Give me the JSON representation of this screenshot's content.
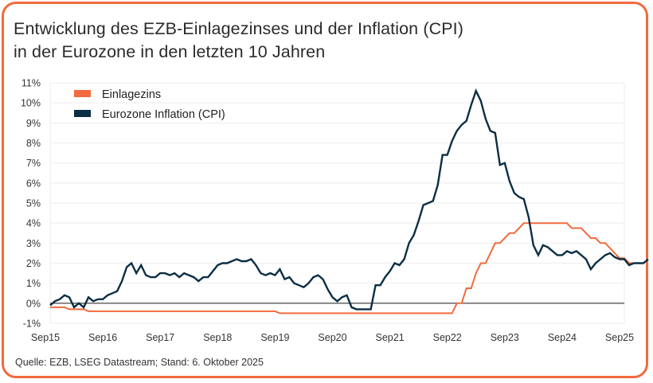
{
  "title_lines": [
    "Entwicklung des EZB-Einlagezinses und der Inflation (CPI)",
    "in der Eurozone in den letzten 10 Jahren"
  ],
  "source": "Quelle: EZB, LSEG Datastream; Stand: 6. Oktober 2025",
  "colors": {
    "deposit_rate": "#F26A3D",
    "inflation": "#0B2E43",
    "border": "#F26A3D",
    "zero_line": "#555555",
    "grid": "#EEEEEE"
  },
  "chart_data": {
    "type": "line",
    "title": "Entwicklung des EZB-Einlagezinses und der Inflation (CPI) in der Eurozone in den letzten 10 Jahren",
    "xlabel": "",
    "ylabel": "",
    "x_start": "2015-09",
    "x_end": "2025-09",
    "x_frequency": "monthly",
    "xticks": [
      "Sep15",
      "Sep16",
      "Sep17",
      "Sep18",
      "Sep19",
      "Sep20",
      "Sep21",
      "Sep22",
      "Sep23",
      "Sep24",
      "Sep25"
    ],
    "ylim": [
      -1,
      11
    ],
    "yticks": [
      -1,
      0,
      1,
      2,
      3,
      4,
      5,
      6,
      7,
      8,
      9,
      10,
      11
    ],
    "ytick_labels": [
      "-1%",
      "0%",
      "1%",
      "2%",
      "3%",
      "4%",
      "5%",
      "6%",
      "7%",
      "8%",
      "9%",
      "10%",
      "11%"
    ],
    "grid": true,
    "legend_position": "top-left",
    "series": [
      {
        "name": "Einlagezins",
        "color": "#F26A3D",
        "values": [
          -0.2,
          -0.2,
          -0.2,
          -0.2,
          -0.3,
          -0.3,
          -0.3,
          -0.3,
          -0.4,
          -0.4,
          -0.4,
          -0.4,
          -0.4,
          -0.4,
          -0.4,
          -0.4,
          -0.4,
          -0.4,
          -0.4,
          -0.4,
          -0.4,
          -0.4,
          -0.4,
          -0.4,
          -0.4,
          -0.4,
          -0.4,
          -0.4,
          -0.4,
          -0.4,
          -0.4,
          -0.4,
          -0.4,
          -0.4,
          -0.4,
          -0.4,
          -0.4,
          -0.4,
          -0.4,
          -0.4,
          -0.4,
          -0.4,
          -0.4,
          -0.4,
          -0.4,
          -0.4,
          -0.4,
          -0.4,
          -0.5,
          -0.5,
          -0.5,
          -0.5,
          -0.5,
          -0.5,
          -0.5,
          -0.5,
          -0.5,
          -0.5,
          -0.5,
          -0.5,
          -0.5,
          -0.5,
          -0.5,
          -0.5,
          -0.5,
          -0.5,
          -0.5,
          -0.5,
          -0.5,
          -0.5,
          -0.5,
          -0.5,
          -0.5,
          -0.5,
          -0.5,
          -0.5,
          -0.5,
          -0.5,
          -0.5,
          -0.5,
          -0.5,
          -0.5,
          -0.5,
          -0.5,
          -0.5,
          0.0,
          0.0,
          0.75,
          0.75,
          1.5,
          2.0,
          2.0,
          2.5,
          3.0,
          3.0,
          3.25,
          3.5,
          3.5,
          3.75,
          4.0,
          4.0,
          4.0,
          4.0,
          4.0,
          4.0,
          4.0,
          4.0,
          4.0,
          4.0,
          3.75,
          3.75,
          3.75,
          3.5,
          3.25,
          3.25,
          3.0,
          3.0,
          2.75,
          2.5,
          2.25,
          2.25,
          2.0,
          2.0,
          2.0,
          2.0
        ]
      },
      {
        "name": "Eurozone Inflation (CPI)",
        "color": "#0B2E43",
        "values": [
          -0.1,
          0.1,
          0.2,
          0.4,
          0.3,
          -0.2,
          0.0,
          -0.2,
          0.3,
          0.1,
          0.2,
          0.2,
          0.4,
          0.5,
          0.6,
          1.1,
          1.8,
          2.0,
          1.5,
          1.9,
          1.4,
          1.3,
          1.3,
          1.5,
          1.5,
          1.4,
          1.5,
          1.3,
          1.5,
          1.4,
          1.3,
          1.1,
          1.3,
          1.3,
          1.6,
          1.9,
          2.0,
          2.0,
          2.1,
          2.2,
          2.1,
          2.1,
          2.2,
          1.9,
          1.5,
          1.4,
          1.5,
          1.4,
          1.7,
          1.2,
          1.3,
          1.0,
          0.9,
          0.8,
          1.0,
          1.3,
          1.4,
          1.2,
          0.7,
          0.3,
          0.1,
          0.3,
          0.4,
          -0.2,
          -0.3,
          -0.3,
          -0.3,
          -0.3,
          0.9,
          0.9,
          1.3,
          1.6,
          2.0,
          1.9,
          2.2,
          3.0,
          3.4,
          4.1,
          4.9,
          5.0,
          5.1,
          5.9,
          7.4,
          7.4,
          8.1,
          8.6,
          8.9,
          9.1,
          9.9,
          10.6,
          10.1,
          9.2,
          8.6,
          8.5,
          6.9,
          7.0,
          6.1,
          5.5,
          5.3,
          5.2,
          4.3,
          2.9,
          2.4,
          2.9,
          2.8,
          2.6,
          2.4,
          2.4,
          2.6,
          2.5,
          2.6,
          2.4,
          2.2,
          1.7,
          2.0,
          2.2,
          2.4,
          2.5,
          2.3,
          2.2,
          2.2,
          1.9,
          2.0,
          2.0,
          2.0,
          2.2
        ]
      }
    ]
  },
  "legend": [
    {
      "label": "Einlagezins",
      "color": "#F26A3D"
    },
    {
      "label": "Eurozone Inflation (CPI)",
      "color": "#0B2E43"
    }
  ]
}
